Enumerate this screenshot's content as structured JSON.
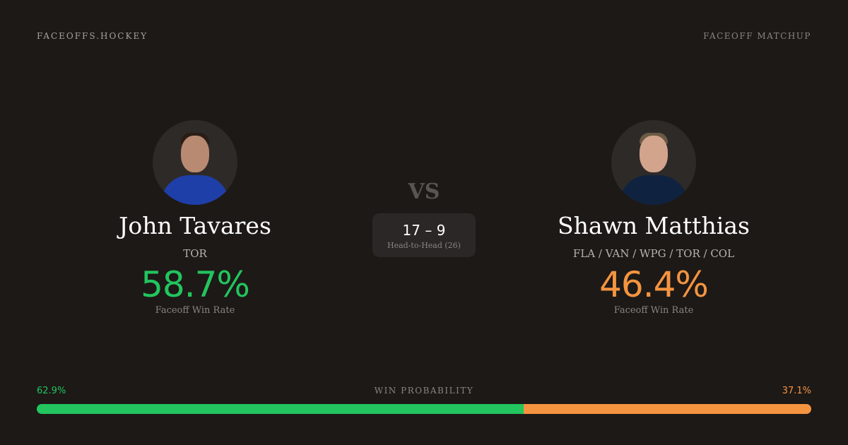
{
  "header": {
    "brand": "FACEOFFS.HOCKEY",
    "kind": "FACEOFF MATCHUP"
  },
  "player1": {
    "name": "John Tavares",
    "team": "TOR",
    "win_rate": "58.7%",
    "win_rate_label": "Faceoff Win Rate",
    "color": "#22c55e"
  },
  "player2": {
    "name": "Shawn Matthias",
    "team": "FLA / VAN / WPG / TOR / COL",
    "win_rate": "46.4%",
    "win_rate_label": "Faceoff Win Rate",
    "color": "#f59440"
  },
  "vs": "VS",
  "head_to_head": {
    "score": "17 – 9",
    "label": "Head-to-Head (26)"
  },
  "win_probability": {
    "label": "WIN PROBABILITY",
    "left": "62.9%",
    "right": "37.1%",
    "left_value": 62.9,
    "right_value": 37.1
  }
}
